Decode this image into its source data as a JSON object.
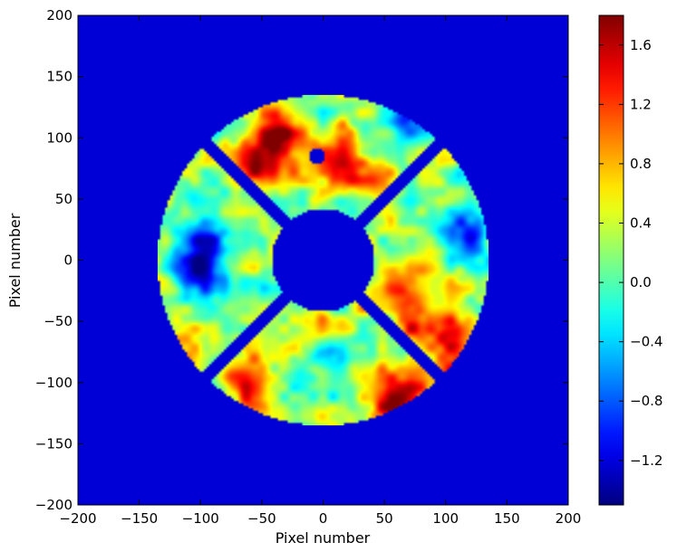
{
  "chart_data": {
    "type": "heatmap",
    "title": "",
    "xlabel": "Pixel number",
    "ylabel": "Pixel number",
    "xlim": [
      -200,
      200
    ],
    "ylim": [
      -200,
      200
    ],
    "xticks": [
      -200,
      -150,
      -100,
      -50,
      0,
      50,
      100,
      150,
      200
    ],
    "yticks": [
      -200,
      -150,
      -100,
      -50,
      0,
      50,
      100,
      150,
      200
    ],
    "xtick_labels": [
      "−200",
      "−150",
      "−100",
      "−50",
      "0",
      "50",
      "100",
      "150",
      "200"
    ],
    "ytick_labels": [
      "−200",
      "−150",
      "−100",
      "−50",
      "0",
      "50",
      "100",
      "150",
      "200"
    ],
    "aperture": {
      "center": [
        0,
        0
      ],
      "outer_radius": 135,
      "inner_radius": 42,
      "spider_angles_deg": [
        45,
        135
      ],
      "spider_width": 10,
      "hole_center": [
        -5,
        85
      ],
      "hole_radius": 7
    },
    "background_value": -1.22,
    "colorbar": {
      "colormap": "jet",
      "vmin": -1.5,
      "vmax": 1.8,
      "ticks": [
        -1.2,
        -0.8,
        -0.4,
        0.0,
        0.4,
        0.8,
        1.2,
        1.6
      ],
      "tick_labels": [
        "−1.2",
        "−0.8",
        "−0.4",
        "0.0",
        "0.4",
        "0.8",
        "1.2",
        "1.6"
      ]
    },
    "hotspots": [
      {
        "x": -55,
        "y": 80,
        "value": 1.5
      },
      {
        "x": -30,
        "y": 95,
        "value": 1.4
      },
      {
        "x": 15,
        "y": 85,
        "value": 1.1
      },
      {
        "x": -38,
        "y": 110,
        "value": 1.2
      },
      {
        "x": -100,
        "y": 20,
        "value": -1.1
      },
      {
        "x": -105,
        "y": -10,
        "value": -1.0
      },
      {
        "x": 65,
        "y": -25,
        "value": 1.3
      },
      {
        "x": 80,
        "y": -55,
        "value": 1.2
      },
      {
        "x": 105,
        "y": -65,
        "value": 1.3
      },
      {
        "x": -65,
        "y": -105,
        "value": 1.2
      },
      {
        "x": 55,
        "y": -115,
        "value": 1.4
      },
      {
        "x": 90,
        "y": -105,
        "value": 1.1
      },
      {
        "x": 0,
        "y": -80,
        "value": -0.6
      },
      {
        "x": 110,
        "y": 20,
        "value": -0.6
      },
      {
        "x": 120,
        "y": 30,
        "value": -0.5
      },
      {
        "x": 65,
        "y": 115,
        "value": -0.7
      },
      {
        "x": -10,
        "y": -55,
        "value": 1.0
      },
      {
        "x": -90,
        "y": 55,
        "value": -0.4
      },
      {
        "x": 35,
        "y": 60,
        "value": 0.9
      }
    ]
  }
}
